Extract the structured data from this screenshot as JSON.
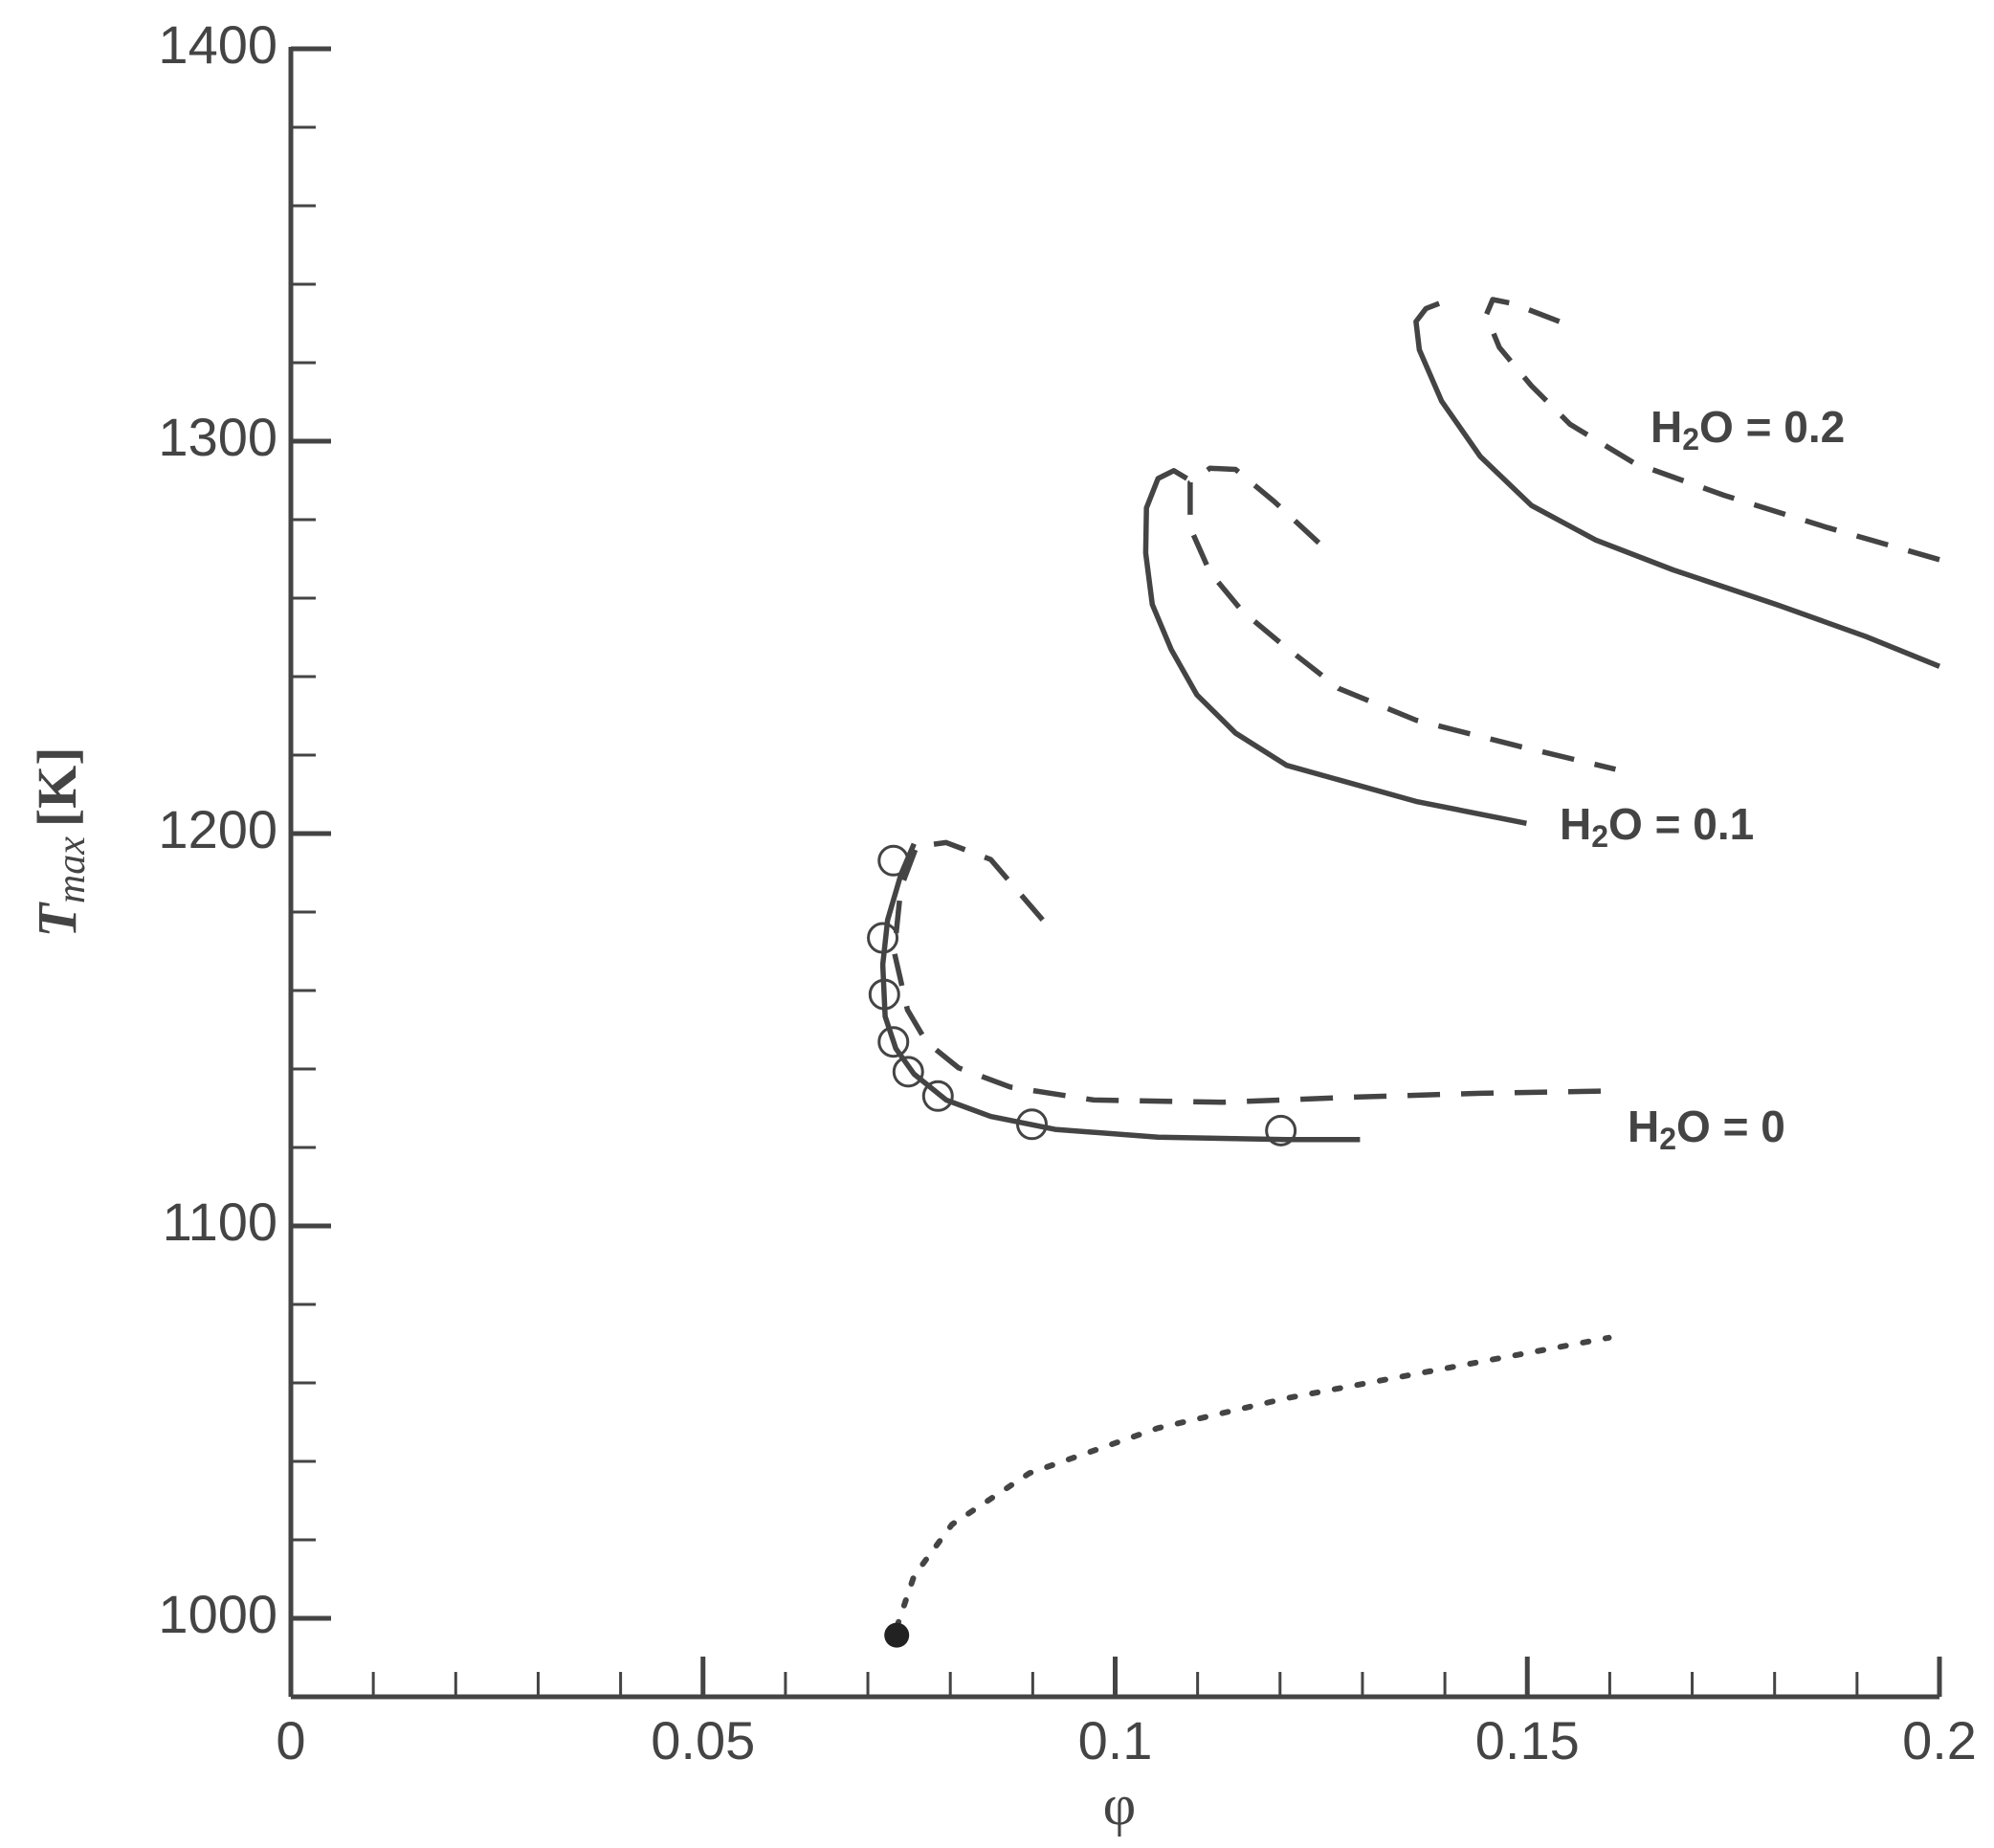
{
  "chart_data": {
    "type": "line",
    "xlabel": "φ",
    "ylabel": {
      "symbol": "T",
      "subscript": "max",
      "unit": "[K]"
    },
    "xlim": [
      0,
      0.2
    ],
    "xticks": [
      0,
      0.05,
      0.1,
      0.15,
      0.2
    ],
    "xminorticks": [
      0.01,
      0.02,
      0.03,
      0.04,
      0.06,
      0.07,
      0.08,
      0.09,
      0.11,
      0.12,
      0.13,
      0.14,
      0.16,
      0.17,
      0.18,
      0.19
    ],
    "ylim": [
      980,
      1400
    ],
    "yticks": [
      1000,
      1100,
      1200,
      1300,
      1400
    ],
    "yminorticks": [
      1020,
      1040,
      1060,
      1080,
      1120,
      1140,
      1160,
      1180,
      1220,
      1240,
      1260,
      1280,
      1320,
      1340,
      1360,
      1380
    ],
    "grid": false,
    "series": [
      {
        "style": "solid",
        "color": "#444444",
        "x": [
          0.0756,
          0.074,
          0.0724,
          0.0718,
          0.0721,
          0.0734,
          0.0756,
          0.0795,
          0.0849,
          0.0927,
          0.1052,
          0.1208,
          0.1297
        ],
        "y": [
          1197.4,
          1189.5,
          1178.0,
          1166.6,
          1153.4,
          1145.2,
          1138.7,
          1132.1,
          1127.9,
          1124.6,
          1122.6,
          1122.0,
          1122.0
        ]
      },
      {
        "style": "dashed",
        "color": "#444444",
        "x": [
          0.0912,
          0.0849,
          0.0795,
          0.0759,
          0.074,
          0.0732,
          0.0748,
          0.0771,
          0.081,
          0.0873,
          0.0974,
          0.113,
          0.1287,
          0.1443,
          0.1599
        ],
        "y": [
          1178.0,
          1193.4,
          1197.7,
          1196.7,
          1186.2,
          1169.8,
          1155.1,
          1146.9,
          1140.3,
          1135.4,
          1132.1,
          1131.5,
          1132.8,
          1133.8,
          1134.4
        ]
      },
      {
        "style": "markers",
        "color": "#444444",
        "x": [
          0.0731,
          0.0718,
          0.072,
          0.0731,
          0.0749,
          0.0785,
          0.0899,
          0.1201
        ],
        "y": [
          1193.1,
          1173.4,
          1159.0,
          1146.9,
          1139.3,
          1133.1,
          1125.9,
          1124.3
        ]
      },
      {
        "style": "dotted",
        "color": "#444444",
        "x": [
          0.0735,
          0.0756,
          0.0802,
          0.0896,
          0.1052,
          0.1208,
          0.1365,
          0.1599
        ],
        "y": [
          997.7,
          1010.8,
          1023.9,
          1037.0,
          1048.5,
          1056.1,
          1062.3,
          1071.5
        ]
      },
      {
        "style": "point",
        "color": "#222222",
        "x": [
          0.0735
        ],
        "y": [
          995.7
        ]
      },
      {
        "style": "solid",
        "color": "#444444",
        "x": [
          0.1499,
          0.1365,
          0.1208,
          0.1146,
          0.1099,
          0.1068,
          0.1045,
          0.1037,
          0.1038,
          0.1052,
          0.1071,
          0.1087
        ],
        "y": [
          1202.6,
          1208.2,
          1217.4,
          1225.6,
          1235.4,
          1246.9,
          1258.4,
          1271.5,
          1283.0,
          1290.5,
          1292.5,
          1290.5
        ]
      },
      {
        "style": "dashed",
        "color": "#444444",
        "x": [
          0.1247,
          0.1193,
          0.1146,
          0.1115,
          0.1091,
          0.1091,
          0.1115,
          0.1154,
          0.1201,
          0.1271,
          0.1365,
          0.1489,
          0.1607
        ],
        "y": [
          1274.1,
          1284.6,
          1292.8,
          1293.1,
          1289.5,
          1278.0,
          1266.6,
          1256.7,
          1248.5,
          1237.0,
          1228.9,
          1222.3,
          1216.4
        ]
      },
      {
        "style": "solid",
        "color": "#444444",
        "x": [
          0.2,
          0.1911,
          0.1802,
          0.1677,
          0.1583,
          0.1505,
          0.1443,
          0.1396,
          0.1369,
          0.1365,
          0.1377,
          0.1393
        ],
        "y": [
          1242.6,
          1250.2,
          1258.4,
          1267.2,
          1274.8,
          1283.6,
          1296.1,
          1310.2,
          1323.3,
          1330.5,
          1333.8,
          1335.1
        ]
      },
      {
        "style": "dashed",
        "color": "#444444",
        "x": [
          0.2,
          0.1864,
          0.1739,
          0.163,
          0.1552,
          0.1505,
          0.1466,
          0.145,
          0.1458,
          0.1482,
          0.1539
        ],
        "y": [
          1269.8,
          1278.0,
          1286.2,
          1294.4,
          1304.3,
          1314.1,
          1323.9,
          1332.1,
          1336.1,
          1335.1,
          1330.5
        ]
      }
    ],
    "annotations": [
      {
        "parts": [
          "H",
          "2",
          "O = 0.2"
        ]
      },
      {
        "parts": [
          "H",
          "2",
          "O = 0.1"
        ]
      },
      {
        "parts": [
          "H",
          "2",
          "O = 0"
        ]
      }
    ]
  }
}
